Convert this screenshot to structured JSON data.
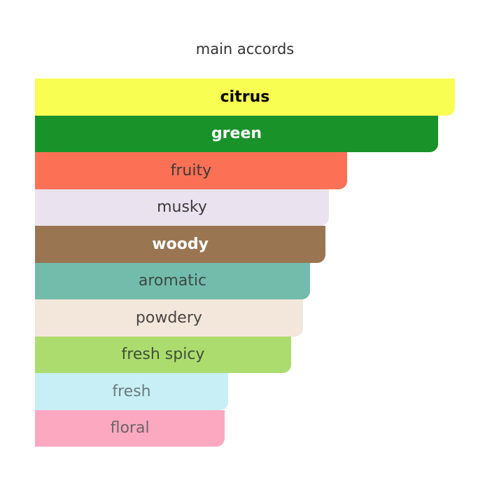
{
  "chart_data": {
    "type": "bar",
    "orientation": "horizontal",
    "title": "main accords",
    "xlim": [
      0,
      100
    ],
    "grid": false,
    "categories": [
      "citrus",
      "green",
      "fruity",
      "musky",
      "woody",
      "aromatic",
      "powdery",
      "fresh spicy",
      "fresh",
      "floral"
    ],
    "values": [
      100,
      96,
      74.3,
      70,
      69.2,
      65.5,
      63.8,
      61,
      46,
      45.2
    ],
    "colors": [
      "#f9ff52",
      "#19922a",
      "#fc7155",
      "#ebe2f0",
      "#9a7552",
      "#73bcab",
      "#f3e7dc",
      "#acdc6e",
      "#c8eff5",
      "#fda8c1"
    ],
    "text_colors": [
      "#000000",
      "#ffffff",
      "#3a3a3a",
      "#3a3a3a",
      "#ffffff",
      "#3d4a46",
      "#4a4340",
      "#3f4f37",
      "#6a7a7c",
      "#6e6468"
    ],
    "text_bold": [
      true,
      true,
      false,
      false,
      true,
      false,
      false,
      false,
      false,
      false
    ]
  }
}
